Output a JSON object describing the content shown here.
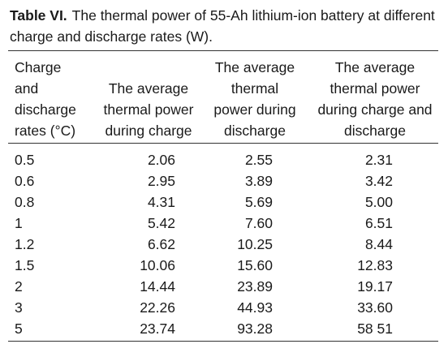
{
  "caption": {
    "label": "Table VI.",
    "text": "The thermal power of 55-Ah lithium-ion battery at different charge and discharge rates (W)."
  },
  "table": {
    "headers": [
      [
        "Charge",
        "and",
        "discharge",
        "rates (°C)"
      ],
      [
        "The average",
        "thermal power",
        "during charge"
      ],
      [
        "The average",
        "thermal",
        "power during",
        "discharge"
      ],
      [
        "The average",
        "thermal power",
        "during charge and",
        "discharge"
      ]
    ],
    "rows": [
      [
        "0.5",
        "2.06",
        "2.55",
        "2.31"
      ],
      [
        "0.6",
        "2.95",
        "3.89",
        "3.42"
      ],
      [
        "0.8",
        "4.31",
        "5.69",
        "5.00"
      ],
      [
        "1",
        "5.42",
        "7.60",
        "6.51"
      ],
      [
        "1.2",
        "6.62",
        "10.25",
        "8.44"
      ],
      [
        "1.5",
        "10.06",
        "15.60",
        "12.83"
      ],
      [
        "2",
        "14.44",
        "23.89",
        "19.17"
      ],
      [
        "3",
        "22.26",
        "44.93",
        "33.60"
      ],
      [
        "5",
        "23.74",
        "93.28",
        "58 51"
      ]
    ]
  }
}
